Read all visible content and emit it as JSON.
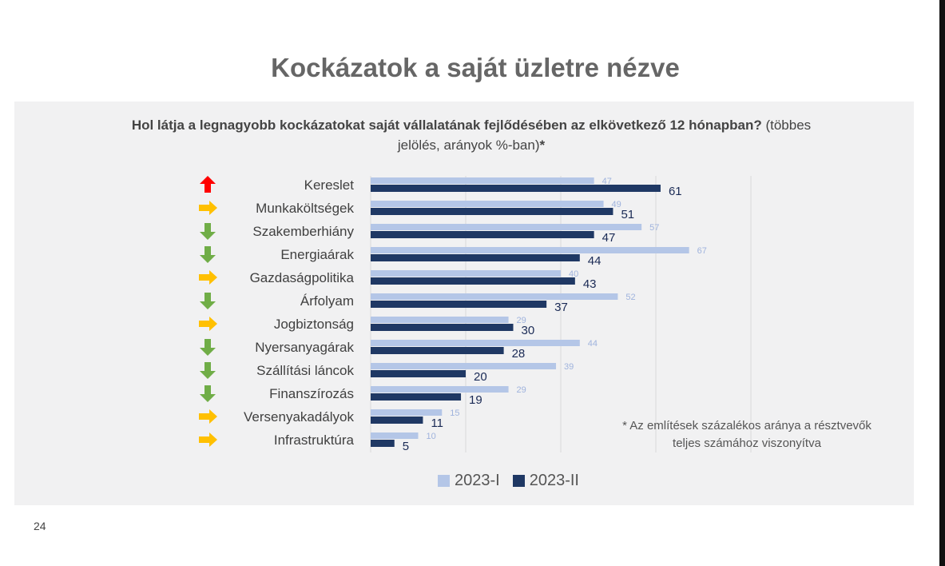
{
  "page": {
    "title": "Kockázatok a saját üzletre nézve",
    "question_bold": "Hol látja a legnagyobb kockázatokat saját vállalatának fejlődésében az elkövetkező 12 hónapban?",
    "question_normal": " (többes jelölés, arányok %-ban)",
    "question_star": "*",
    "footnote": "* Az említések százalékos aránya a résztvevők teljes számához viszonyítva",
    "page_number": "24"
  },
  "colors": {
    "series_i": "#b4c6e7",
    "series_ii": "#1f3864",
    "arrow_up": "#ff0000",
    "arrow_right": "#ffc000",
    "arrow_down": "#70ad47",
    "grid": "#d9d9d9"
  },
  "chart_data": {
    "type": "bar",
    "orientation": "horizontal",
    "title": "Hol látja a legnagyobb kockázatokat saját vállalatának fejlődésében az elkövetkező 12 hónapban? (többes jelölés, arányok %-ban)*",
    "categories": [
      "Kereslet",
      "Munkaköltségek",
      "Szakemberhiány",
      "Energiaárak",
      "Gazdaságpolitika",
      "Árfolyam",
      "Jogbiztonság",
      "Nyersanyagárak",
      "Szállítási láncok",
      "Finanszírozás",
      "Versenyakadályok",
      "Infrastruktúra"
    ],
    "series": [
      {
        "name": "2023-I",
        "values": [
          47,
          49,
          57,
          67,
          40,
          52,
          29,
          44,
          39,
          29,
          15,
          10
        ]
      },
      {
        "name": "2023-II",
        "values": [
          61,
          51,
          47,
          44,
          43,
          37,
          30,
          28,
          20,
          19,
          11,
          5
        ]
      }
    ],
    "trend_icons": [
      "arrow-up",
      "arrow-right",
      "arrow-down",
      "arrow-down",
      "arrow-right",
      "arrow-down",
      "arrow-right",
      "arrow-down",
      "arrow-down",
      "arrow-down",
      "arrow-right",
      "arrow-right"
    ],
    "xlim": [
      0,
      80
    ],
    "grid": true,
    "legend": "bottom"
  }
}
